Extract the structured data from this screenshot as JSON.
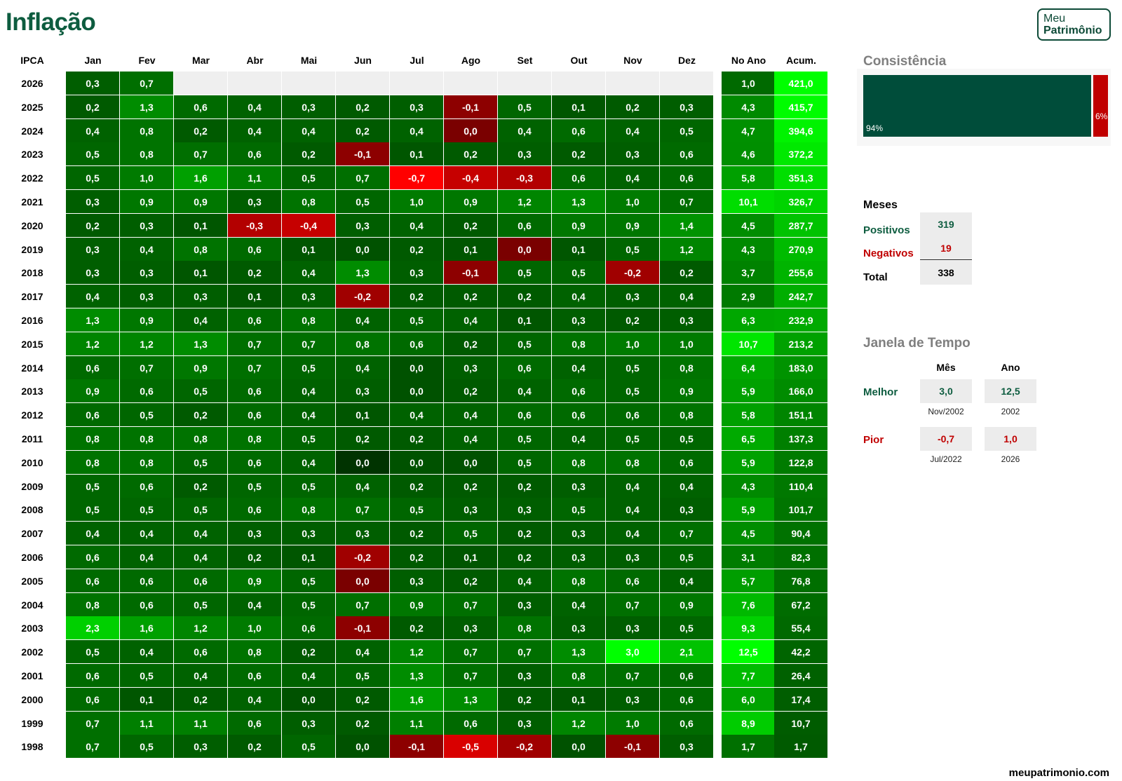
{
  "page": {
    "title": "Inflação",
    "footer": "meupatrimonio.com"
  },
  "logo": {
    "line1": "Meu",
    "line2": "Patrimônio"
  },
  "colors": {
    "green_dark": "#003300",
    "green_mid": "#008000",
    "green_light": "#00ff00",
    "red_dark": "#7a0000",
    "red_light": "#ff0000",
    "empty": "#efefef",
    "brand": "#0d5c3f",
    "consist_pos": "#004d3a",
    "consist_neg": "#c00000"
  },
  "chart_data": {
    "type": "heatmap",
    "title": "Inflação",
    "row_header": "IPCA",
    "columns": [
      "Jan",
      "Fev",
      "Mar",
      "Abr",
      "Mai",
      "Jun",
      "Jul",
      "Ago",
      "Set",
      "Out",
      "Nov",
      "Dez"
    ],
    "year_columns": [
      "No Ano",
      "Acum."
    ],
    "rows": [
      {
        "year": "2026",
        "months": [
          "0,3",
          "0,7",
          "",
          "",
          "",
          "",
          "",
          "",
          "",
          "",
          "",
          ""
        ],
        "no_ano": "1,0",
        "acum": "421,0"
      },
      {
        "year": "2025",
        "months": [
          "0,2",
          "1,3",
          "0,6",
          "0,4",
          "0,3",
          "0,2",
          "0,3",
          "-0,1",
          "0,5",
          "0,1",
          "0,2",
          "0,3"
        ],
        "no_ano": "4,3",
        "acum": "415,7"
      },
      {
        "year": "2024",
        "months": [
          "0,4",
          "0,8",
          "0,2",
          "0,4",
          "0,4",
          "0,2",
          "0,4",
          "0,0",
          "0,4",
          "0,6",
          "0,4",
          "0,5"
        ],
        "no_ano": "4,7",
        "acum": "394,6"
      },
      {
        "year": "2023",
        "months": [
          "0,5",
          "0,8",
          "0,7",
          "0,6",
          "0,2",
          "-0,1",
          "0,1",
          "0,2",
          "0,3",
          "0,2",
          "0,3",
          "0,6"
        ],
        "no_ano": "4,6",
        "acum": "372,2"
      },
      {
        "year": "2022",
        "months": [
          "0,5",
          "1,0",
          "1,6",
          "1,1",
          "0,5",
          "0,7",
          "-0,7",
          "-0,4",
          "-0,3",
          "0,6",
          "0,4",
          "0,6"
        ],
        "no_ano": "5,8",
        "acum": "351,3"
      },
      {
        "year": "2021",
        "months": [
          "0,3",
          "0,9",
          "0,9",
          "0,3",
          "0,8",
          "0,5",
          "1,0",
          "0,9",
          "1,2",
          "1,3",
          "1,0",
          "0,7"
        ],
        "no_ano": "10,1",
        "acum": "326,7"
      },
      {
        "year": "2020",
        "months": [
          "0,2",
          "0,3",
          "0,1",
          "-0,3",
          "-0,4",
          "0,3",
          "0,4",
          "0,2",
          "0,6",
          "0,9",
          "0,9",
          "1,4"
        ],
        "no_ano": "4,5",
        "acum": "287,7"
      },
      {
        "year": "2019",
        "months": [
          "0,3",
          "0,4",
          "0,8",
          "0,6",
          "0,1",
          "0,0",
          "0,2",
          "0,1",
          "0,0",
          "0,1",
          "0,5",
          "1,2"
        ],
        "no_ano": "4,3",
        "acum": "270,9"
      },
      {
        "year": "2018",
        "months": [
          "0,3",
          "0,3",
          "0,1",
          "0,2",
          "0,4",
          "1,3",
          "0,3",
          "-0,1",
          "0,5",
          "0,5",
          "-0,2",
          "0,2"
        ],
        "no_ano": "3,7",
        "acum": "255,6"
      },
      {
        "year": "2017",
        "months": [
          "0,4",
          "0,3",
          "0,3",
          "0,1",
          "0,3",
          "-0,2",
          "0,2",
          "0,2",
          "0,2",
          "0,4",
          "0,3",
          "0,4"
        ],
        "no_ano": "2,9",
        "acum": "242,7"
      },
      {
        "year": "2016",
        "months": [
          "1,3",
          "0,9",
          "0,4",
          "0,6",
          "0,8",
          "0,4",
          "0,5",
          "0,4",
          "0,1",
          "0,3",
          "0,2",
          "0,3"
        ],
        "no_ano": "6,3",
        "acum": "232,9"
      },
      {
        "year": "2015",
        "months": [
          "1,2",
          "1,2",
          "1,3",
          "0,7",
          "0,7",
          "0,8",
          "0,6",
          "0,2",
          "0,5",
          "0,8",
          "1,0",
          "1,0"
        ],
        "no_ano": "10,7",
        "acum": "213,2"
      },
      {
        "year": "2014",
        "months": [
          "0,6",
          "0,7",
          "0,9",
          "0,7",
          "0,5",
          "0,4",
          "0,0",
          "0,3",
          "0,6",
          "0,4",
          "0,5",
          "0,8"
        ],
        "no_ano": "6,4",
        "acum": "183,0"
      },
      {
        "year": "2013",
        "months": [
          "0,9",
          "0,6",
          "0,5",
          "0,6",
          "0,4",
          "0,3",
          "0,0",
          "0,2",
          "0,4",
          "0,6",
          "0,5",
          "0,9"
        ],
        "no_ano": "5,9",
        "acum": "166,0"
      },
      {
        "year": "2012",
        "months": [
          "0,6",
          "0,5",
          "0,2",
          "0,6",
          "0,4",
          "0,1",
          "0,4",
          "0,4",
          "0,6",
          "0,6",
          "0,6",
          "0,8"
        ],
        "no_ano": "5,8",
        "acum": "151,1"
      },
      {
        "year": "2011",
        "months": [
          "0,8",
          "0,8",
          "0,8",
          "0,8",
          "0,5",
          "0,2",
          "0,2",
          "0,4",
          "0,5",
          "0,4",
          "0,5",
          "0,5"
        ],
        "no_ano": "6,5",
        "acum": "137,3"
      },
      {
        "year": "2010",
        "months": [
          "0,8",
          "0,8",
          "0,5",
          "0,6",
          "0,4",
          "0,0",
          "0,0",
          "0,0",
          "0,5",
          "0,8",
          "0,8",
          "0,6"
        ],
        "no_ano": "5,9",
        "acum": "122,8"
      },
      {
        "year": "2009",
        "months": [
          "0,5",
          "0,6",
          "0,2",
          "0,5",
          "0,5",
          "0,4",
          "0,2",
          "0,2",
          "0,2",
          "0,3",
          "0,4",
          "0,4"
        ],
        "no_ano": "4,3",
        "acum": "110,4"
      },
      {
        "year": "2008",
        "months": [
          "0,5",
          "0,5",
          "0,5",
          "0,6",
          "0,8",
          "0,7",
          "0,5",
          "0,3",
          "0,3",
          "0,5",
          "0,4",
          "0,3"
        ],
        "no_ano": "5,9",
        "acum": "101,7"
      },
      {
        "year": "2007",
        "months": [
          "0,4",
          "0,4",
          "0,4",
          "0,3",
          "0,3",
          "0,3",
          "0,2",
          "0,5",
          "0,2",
          "0,3",
          "0,4",
          "0,7"
        ],
        "no_ano": "4,5",
        "acum": "90,4"
      },
      {
        "year": "2006",
        "months": [
          "0,6",
          "0,4",
          "0,4",
          "0,2",
          "0,1",
          "-0,2",
          "0,2",
          "0,1",
          "0,2",
          "0,3",
          "0,3",
          "0,5"
        ],
        "no_ano": "3,1",
        "acum": "82,3"
      },
      {
        "year": "2005",
        "months": [
          "0,6",
          "0,6",
          "0,6",
          "0,9",
          "0,5",
          "0,0",
          "0,3",
          "0,2",
          "0,4",
          "0,8",
          "0,6",
          "0,4"
        ],
        "no_ano": "5,7",
        "acum": "76,8"
      },
      {
        "year": "2004",
        "months": [
          "0,8",
          "0,6",
          "0,5",
          "0,4",
          "0,5",
          "0,7",
          "0,9",
          "0,7",
          "0,3",
          "0,4",
          "0,7",
          "0,9"
        ],
        "no_ano": "7,6",
        "acum": "67,2"
      },
      {
        "year": "2003",
        "months": [
          "2,3",
          "1,6",
          "1,2",
          "1,0",
          "0,6",
          "-0,1",
          "0,2",
          "0,3",
          "0,8",
          "0,3",
          "0,3",
          "0,5"
        ],
        "no_ano": "9,3",
        "acum": "55,4"
      },
      {
        "year": "2002",
        "months": [
          "0,5",
          "0,4",
          "0,6",
          "0,8",
          "0,2",
          "0,4",
          "1,2",
          "0,7",
          "0,7",
          "1,3",
          "3,0",
          "2,1"
        ],
        "no_ano": "12,5",
        "acum": "42,2"
      },
      {
        "year": "2001",
        "months": [
          "0,6",
          "0,5",
          "0,4",
          "0,6",
          "0,4",
          "0,5",
          "1,3",
          "0,7",
          "0,3",
          "0,8",
          "0,7",
          "0,6"
        ],
        "no_ano": "7,7",
        "acum": "26,4"
      },
      {
        "year": "2000",
        "months": [
          "0,6",
          "0,1",
          "0,2",
          "0,4",
          "0,0",
          "0,2",
          "1,6",
          "1,3",
          "0,2",
          "0,1",
          "0,3",
          "0,6"
        ],
        "no_ano": "6,0",
        "acum": "17,4"
      },
      {
        "year": "1999",
        "months": [
          "0,7",
          "1,1",
          "1,1",
          "0,6",
          "0,3",
          "0,2",
          "1,1",
          "0,6",
          "0,3",
          "1,2",
          "1,0",
          "0,6"
        ],
        "no_ano": "8,9",
        "acum": "10,7"
      },
      {
        "year": "1998",
        "months": [
          "0,7",
          "0,5",
          "0,3",
          "0,2",
          "0,5",
          "0,0",
          "-0,1",
          "-0,5",
          "-0,2",
          "0,0",
          "-0,1",
          "0,3"
        ],
        "no_ano": "1,7",
        "acum": "1,7"
      }
    ],
    "neg_cells": [
      [
        "2025",
        "Ago"
      ],
      [
        "2024",
        "Ago"
      ],
      [
        "2023",
        "Jun"
      ],
      [
        "2022",
        "Jul"
      ],
      [
        "2022",
        "Ago"
      ],
      [
        "2022",
        "Set"
      ],
      [
        "2020",
        "Abr"
      ],
      [
        "2020",
        "Mai"
      ],
      [
        "2019",
        "Set"
      ],
      [
        "2018",
        "Ago"
      ],
      [
        "2018",
        "Nov"
      ],
      [
        "2017",
        "Jun"
      ],
      [
        "2006",
        "Jun"
      ],
      [
        "2005",
        "Jun"
      ],
      [
        "2003",
        "Jun"
      ],
      [
        "1998",
        "Jul"
      ],
      [
        "1998",
        "Ago"
      ],
      [
        "1998",
        "Set"
      ],
      [
        "1998",
        "Nov"
      ]
    ],
    "consistencia": {
      "title": "Consistência",
      "positive_pct": 94,
      "negative_pct": 6,
      "positive_label": "94%",
      "negative_label": "6%"
    },
    "meses": {
      "title": "Meses",
      "positivos_label": "Positivos",
      "positivos": "319",
      "negativos_label": "Negativos",
      "negativos": "19",
      "total_label": "Total",
      "total": "338"
    },
    "janela": {
      "title": "Janela de Tempo",
      "col_mes": "Mês",
      "col_ano": "Ano",
      "melhor_label": "Melhor",
      "melhor_mes": "3,0",
      "melhor_mes_ref": "Nov/2002",
      "melhor_ano": "12,5",
      "melhor_ano_ref": "2002",
      "pior_label": "Pior",
      "pior_mes": "-0,7",
      "pior_mes_ref": "Jul/2022",
      "pior_ano": "1,0",
      "pior_ano_ref": "2026"
    }
  }
}
